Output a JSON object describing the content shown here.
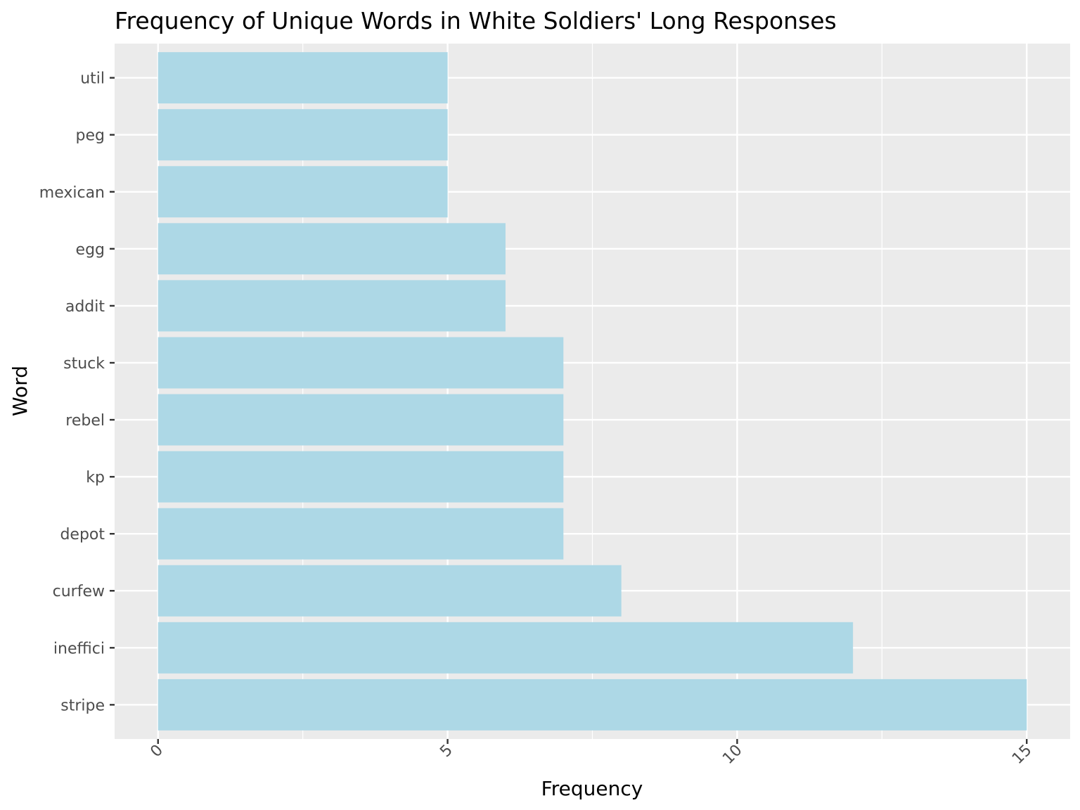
{
  "chart_data": {
    "type": "bar",
    "orientation": "horizontal",
    "title": "Frequency of Unique Words in White Soldiers' Long Responses",
    "xlabel": "Frequency",
    "ylabel": "Word",
    "categories": [
      "util",
      "peg",
      "mexican",
      "egg",
      "addit",
      "stuck",
      "rebel",
      "kp",
      "depot",
      "curfew",
      "ineffici",
      "stripe"
    ],
    "values": [
      5,
      5,
      5,
      6,
      6,
      7,
      7,
      7,
      7,
      8,
      12,
      15
    ],
    "x_ticks": [
      "0",
      "5",
      "10",
      "15"
    ],
    "x_tick_values": [
      0,
      5,
      10,
      15
    ],
    "xlim": [
      -0.75,
      15.75
    ],
    "grid": true,
    "colors": {
      "bar": "#add8e6",
      "panel": "#ebebeb",
      "grid": "#ffffff"
    }
  }
}
